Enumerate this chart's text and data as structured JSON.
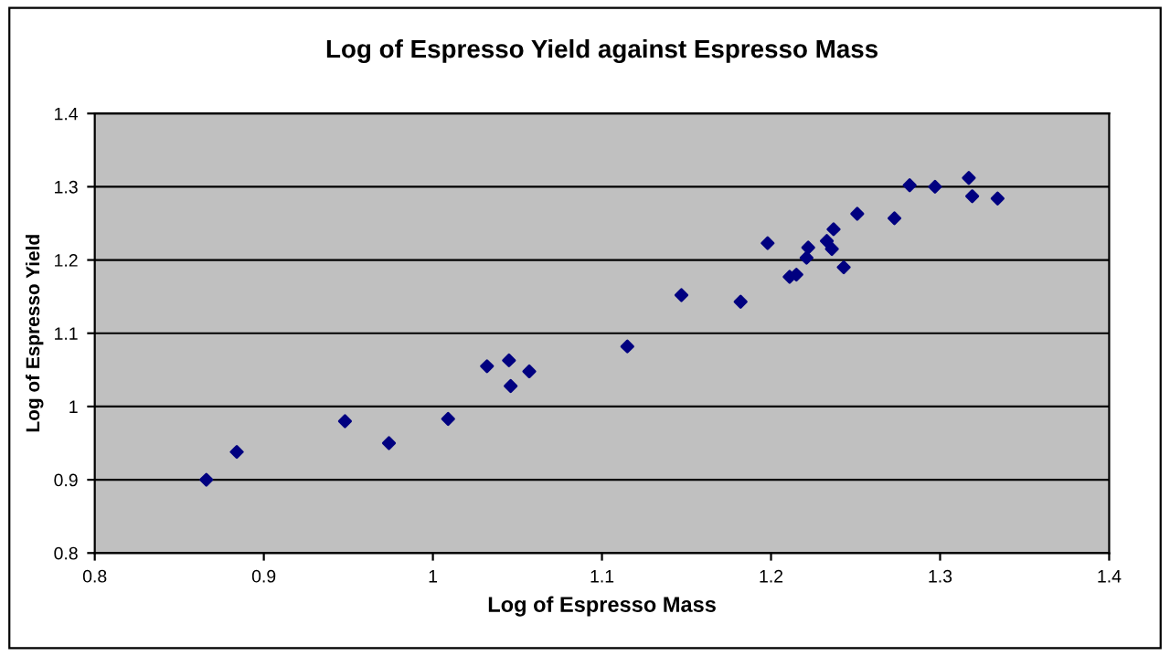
{
  "chart_data": {
    "type": "scatter",
    "title": "Log of Espresso Yield against Espresso Mass",
    "xlabel": "Log of Espresso Mass",
    "ylabel": "Log of Espresso Yield",
    "x": [
      0.866,
      0.884,
      0.948,
      0.974,
      1.009,
      1.032,
      1.045,
      1.046,
      1.057,
      1.115,
      1.147,
      1.182,
      1.198,
      1.211,
      1.215,
      1.221,
      1.222,
      1.233,
      1.236,
      1.237,
      1.243,
      1.251,
      1.273,
      1.282,
      1.297,
      1.317,
      1.319,
      1.334
    ],
    "series": [
      {
        "color": "#000080",
        "values": [
          0.9,
          0.938,
          0.98,
          0.95,
          0.983,
          1.055,
          1.063,
          1.028,
          1.048,
          1.082,
          1.152,
          1.143,
          1.223,
          1.177,
          1.18,
          1.203,
          1.217,
          1.226,
          1.215,
          1.242,
          1.19,
          1.263,
          1.257,
          1.302,
          1.3,
          1.312,
          1.287,
          1.284
        ]
      }
    ],
    "marker": "diamond",
    "grid": "y",
    "xlim": [
      0.8,
      1.4
    ],
    "xticks": [
      0.8,
      0.9,
      1,
      1.1,
      1.2,
      1.3,
      1.4
    ],
    "ylim": [
      0.8,
      1.4
    ],
    "yticks": [
      0.8,
      0.9,
      1,
      1.1,
      1.2,
      1.3,
      1.4
    ]
  }
}
